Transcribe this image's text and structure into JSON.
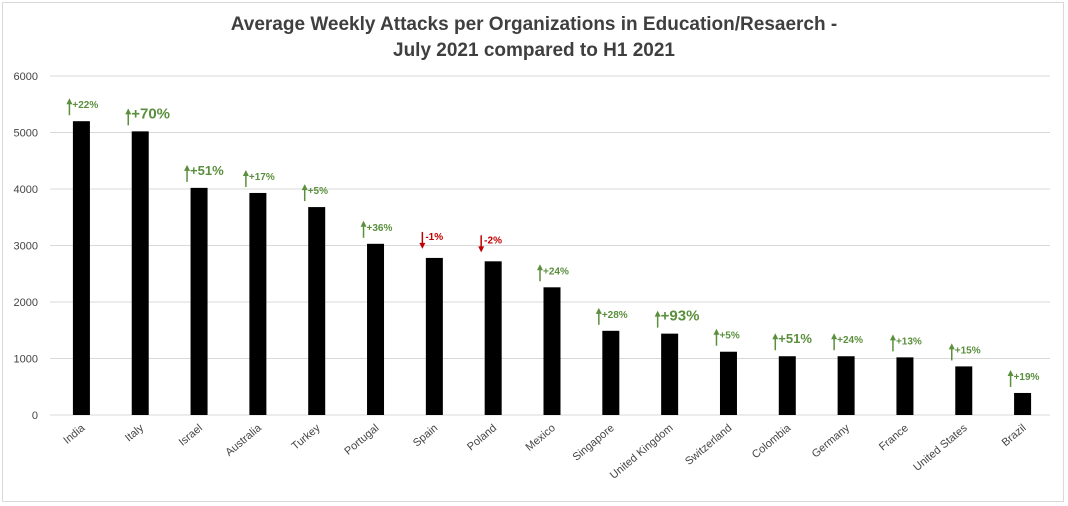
{
  "chart_data": {
    "type": "bar",
    "title_lines": [
      "Average Weekly Attacks per Organizations in Education/Resaerch -",
      "July 2021 compared to H1 2021"
    ],
    "xlabel": "",
    "ylabel": "",
    "ylim": [
      0,
      6000
    ],
    "yticks": [
      "0",
      "1000",
      "2000",
      "3000",
      "4000",
      "5000",
      "6000"
    ],
    "grid": true,
    "legend": "none",
    "categories": [
      "India",
      "Italy",
      "Israel",
      "Australia",
      "Turkey",
      "Portugal",
      "Spain",
      "Poland",
      "Mexico",
      "Singapore",
      "United Kingdom",
      "Switzerland",
      "Colombia",
      "Germany",
      "France",
      "United States",
      "Brazil"
    ],
    "values": [
      5200,
      5020,
      4020,
      3930,
      3680,
      3030,
      2780,
      2720,
      2260,
      1490,
      1440,
      1120,
      1040,
      1040,
      1020,
      860,
      390
    ],
    "annotations": [
      {
        "text": "+22%",
        "direction": "up",
        "size": "small"
      },
      {
        "text": "+70%",
        "direction": "up",
        "size": "large"
      },
      {
        "text": "+51%",
        "direction": "up",
        "size": "medium"
      },
      {
        "text": "+17%",
        "direction": "up",
        "size": "small"
      },
      {
        "text": "+5%",
        "direction": "up",
        "size": "small"
      },
      {
        "text": "+36%",
        "direction": "up",
        "size": "small"
      },
      {
        "text": "-1%",
        "direction": "down",
        "size": "small"
      },
      {
        "text": "-2%",
        "direction": "down",
        "size": "small"
      },
      {
        "text": "+24%",
        "direction": "up",
        "size": "small"
      },
      {
        "text": "+28%",
        "direction": "up",
        "size": "small"
      },
      {
        "text": "+93%",
        "direction": "up",
        "size": "large"
      },
      {
        "text": "+5%",
        "direction": "up",
        "size": "small"
      },
      {
        "text": "+51%",
        "direction": "up",
        "size": "medium"
      },
      {
        "text": "+24%",
        "direction": "up",
        "size": "small"
      },
      {
        "text": "+13%",
        "direction": "up",
        "size": "small"
      },
      {
        "text": "+15%",
        "direction": "up",
        "size": "small"
      },
      {
        "text": "+19%",
        "direction": "up",
        "size": "small"
      }
    ],
    "colors": {
      "bar": "#000000",
      "up": "#5a8f3c",
      "down": "#c00000",
      "grid": "#d9d9d9"
    }
  }
}
